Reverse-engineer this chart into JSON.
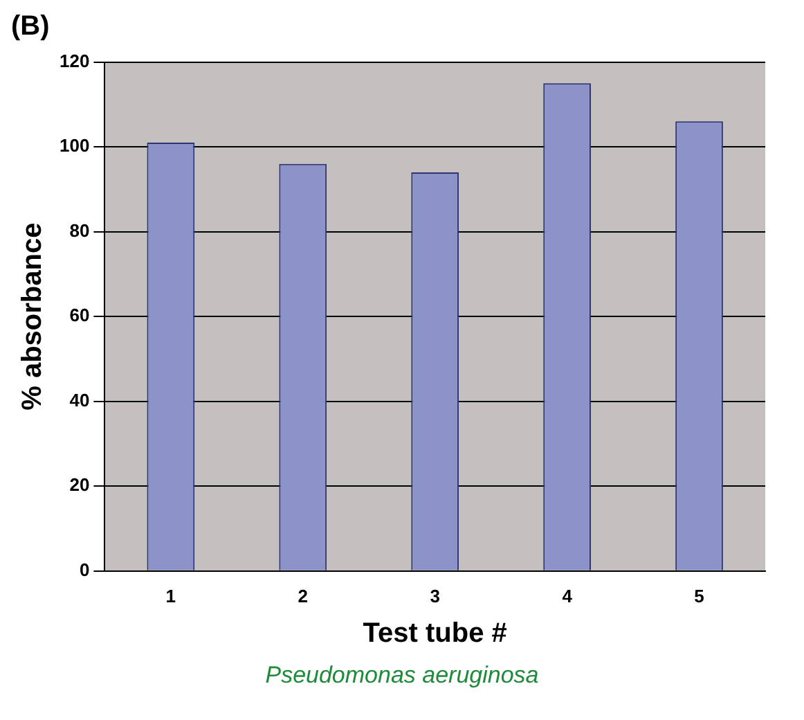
{
  "chart_data": {
    "type": "bar",
    "title": "(B)",
    "xlabel": "Test tube #",
    "ylabel": "% absorbance",
    "categories": [
      "1",
      "2",
      "3",
      "4",
      "5"
    ],
    "series": [
      {
        "color": "#8c93c8",
        "values": [
          101,
          96,
          94,
          115,
          106
        ]
      }
    ],
    "ylim": [
      0,
      120
    ],
    "yticks": [
      0,
      20,
      40,
      60,
      80,
      100,
      120
    ],
    "grid": "y",
    "annotations": [
      "Pseudomonas aeruginosa"
    ]
  }
}
